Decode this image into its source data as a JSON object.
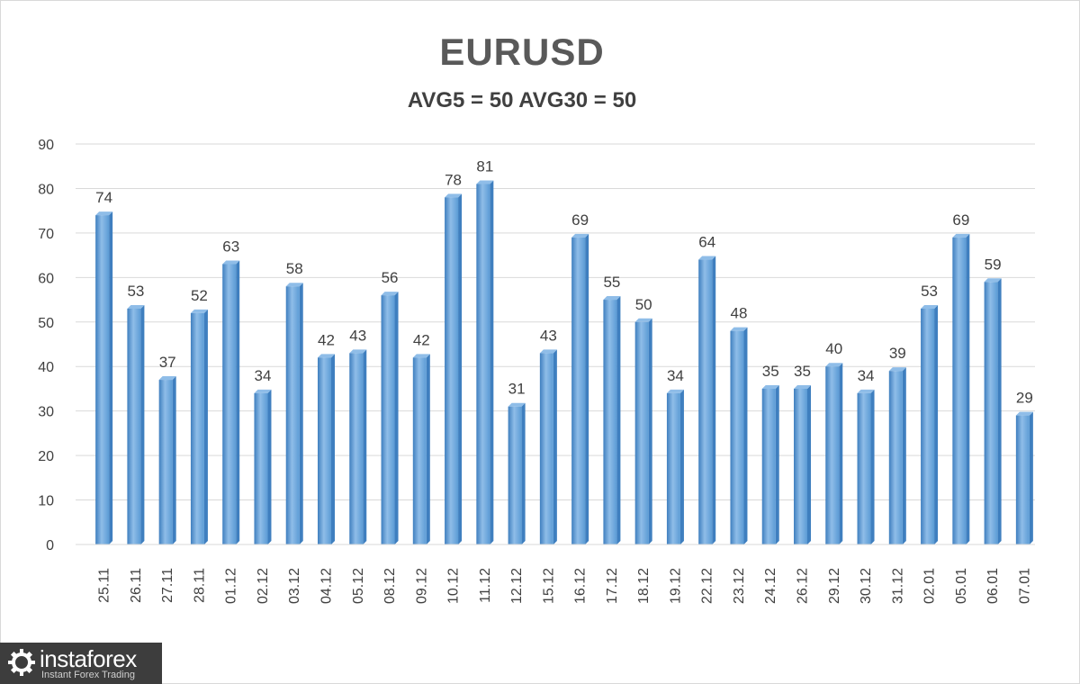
{
  "chart_data": {
    "type": "bar",
    "title": "EURUSD",
    "subtitle": "AVG5 = 50 AVG30 = 50",
    "xlabel": "",
    "ylabel": "",
    "ylim": [
      0,
      90
    ],
    "yticks": [
      0,
      10,
      20,
      30,
      40,
      50,
      60,
      70,
      80,
      90
    ],
    "grid": true,
    "categories": [
      "25.11",
      "26.11",
      "27.11",
      "28.11",
      "01.12",
      "02.12",
      "03.12",
      "04.12",
      "05.12",
      "08.12",
      "09.12",
      "10.12",
      "11.12",
      "12.12",
      "15.12",
      "16.12",
      "17.12",
      "18.12",
      "19.12",
      "22.12",
      "23.12",
      "24.12",
      "26.12",
      "29.12",
      "30.12",
      "31.12",
      "02.01",
      "05.01",
      "06.01",
      "07.01"
    ],
    "values": [
      74,
      53,
      37,
      52,
      63,
      34,
      58,
      42,
      43,
      56,
      42,
      78,
      81,
      31,
      43,
      69,
      55,
      50,
      34,
      64,
      48,
      35,
      35,
      40,
      34,
      39,
      53,
      69,
      59,
      29
    ],
    "colors": {
      "bar": "#5b9bd5",
      "bar_light": "#8fbde8",
      "bar_dark": "#3f7fbf",
      "grid": "#d9d9d9",
      "text": "#404040"
    }
  },
  "logo": {
    "name": "instaforex",
    "tagline": "Instant Forex Trading"
  }
}
